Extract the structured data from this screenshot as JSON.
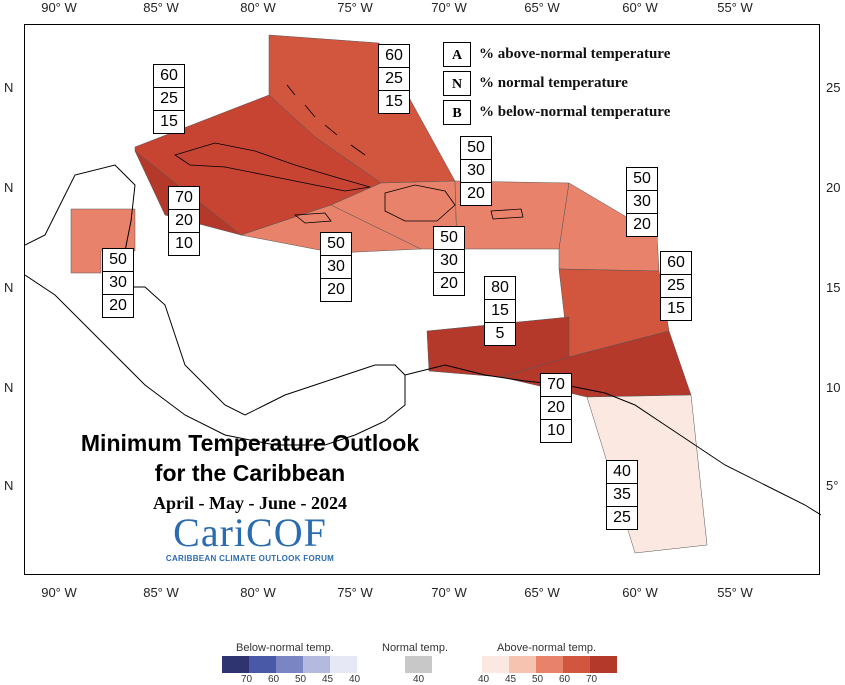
{
  "map": {
    "title_line1": "Minimum Temperature Outlook",
    "title_line2": "for the Caribbean",
    "season": "April - May - June - 2024",
    "logo_text": "CariCOF",
    "logo_subtext": "CARIBBEAN CLIMATE OUTLOOK FORUM"
  },
  "longitude_labels": [
    "90° W",
    "85° W",
    "80° W",
    "75° W",
    "70° W",
    "65° W",
    "60° W",
    "55° W"
  ],
  "latitude_labels_left": [
    "N",
    "N",
    "N",
    "N",
    "N"
  ],
  "latitude_labels_right": [
    "25",
    "20",
    "15",
    "10",
    "5°"
  ],
  "legend": [
    {
      "key": "A",
      "text": "% above-normal temperature"
    },
    {
      "key": "N",
      "text": "% normal temperature"
    },
    {
      "key": "B",
      "text": "% below-normal temperature"
    }
  ],
  "regions": [
    {
      "name": "bahamas",
      "values": [
        "60",
        "25",
        "15"
      ],
      "color": "#d2553e"
    },
    {
      "name": "cuba",
      "values": [
        "60",
        "25",
        "15"
      ],
      "color": "#c84432"
    },
    {
      "name": "western-caribbean",
      "values": [
        "70",
        "20",
        "10"
      ],
      "color": "#b5392b"
    },
    {
      "name": "belize",
      "values": [
        "50",
        "30",
        "20"
      ],
      "color": "#e9826a"
    },
    {
      "name": "jamaica",
      "values": [
        "50",
        "30",
        "20"
      ],
      "color": "#e9826a"
    },
    {
      "name": "hispaniola",
      "values": [
        "50",
        "30",
        "20"
      ],
      "color": "#e9826a"
    },
    {
      "name": "puerto-rico",
      "values": [
        "50",
        "30",
        "20"
      ],
      "color": "#e9826a"
    },
    {
      "name": "leeward-islands",
      "values": [
        "50",
        "30",
        "20"
      ],
      "color": "#e9826a"
    },
    {
      "name": "windward-islands",
      "values": [
        "60",
        "25",
        "15"
      ],
      "color": "#d2553e"
    },
    {
      "name": "abc-islands",
      "values": [
        "80",
        "15",
        "5"
      ],
      "color": "#b5392b"
    },
    {
      "name": "trinidad-tobago",
      "values": [
        "70",
        "20",
        "10"
      ],
      "color": "#b5392b"
    },
    {
      "name": "guianas",
      "values": [
        "40",
        "35",
        "25"
      ],
      "color": "#fbe9e1"
    }
  ],
  "color_scale": {
    "below_title": "Below-normal temp.",
    "normal_title": "Normal temp.",
    "above_title": "Above-normal temp.",
    "below_colors": [
      "#2d3470",
      "#4a58a8",
      "#7a85c3",
      "#b3b9df",
      "#e6e8f5"
    ],
    "below_labels": [
      "70",
      "60",
      "50",
      "45",
      "40"
    ],
    "normal_color": "#c8c8c8",
    "normal_label": "40",
    "above_colors": [
      "#fbe9e1",
      "#f6c3b0",
      "#e9826a",
      "#d2553e",
      "#b5392b"
    ],
    "above_labels": [
      "40",
      "45",
      "50",
      "60",
      "70"
    ]
  }
}
